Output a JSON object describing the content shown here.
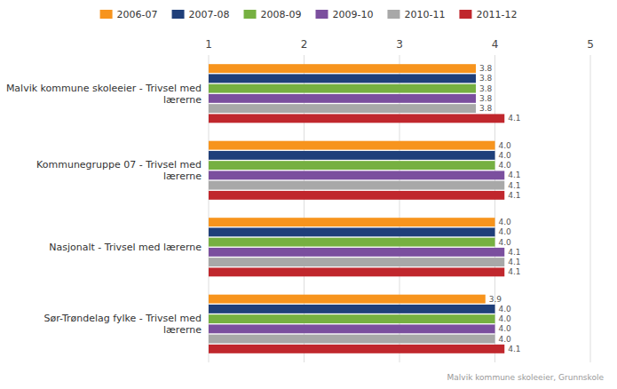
{
  "chart_data": {
    "type": "bar",
    "orientation": "horizontal",
    "categories": [
      "Malvik kommune skoleeier - Trivsel med\nlærerne",
      "Kommunegruppe 07 - Trivsel med\nlærerne",
      "Nasjonalt - Trivsel med lærerne",
      "Sør-Trøndelag fylke - Trivsel med\nlærerne"
    ],
    "series": [
      {
        "name": "2006-07",
        "color": "#F7941D",
        "values": [
          3.8,
          4.0,
          4.0,
          3.9
        ],
        "value_labels": [
          "3.8",
          "4.0",
          "4.0",
          "3.9"
        ]
      },
      {
        "name": "2007-08",
        "color": "#1F3F7A",
        "values": [
          3.8,
          4.0,
          4.0,
          4.0
        ],
        "value_labels": [
          "3.8",
          "4.0",
          "4.0",
          "4.0"
        ]
      },
      {
        "name": "2008-09",
        "color": "#76B041",
        "values": [
          3.8,
          4.0,
          4.0,
          4.0
        ],
        "value_labels": [
          "3.8",
          "4.0",
          "4.0",
          "4.0"
        ]
      },
      {
        "name": "2009-10",
        "color": "#7B4F9E",
        "values": [
          3.8,
          4.1,
          4.1,
          4.0
        ],
        "value_labels": [
          "3.8",
          "4.1",
          "4.1",
          "4.0"
        ]
      },
      {
        "name": "2010-11",
        "color": "#A8A8A8",
        "values": [
          3.8,
          4.1,
          4.1,
          4.0
        ],
        "value_labels": [
          "3.8",
          "4.1",
          "4.1",
          "4.0"
        ]
      },
      {
        "name": "2011-12",
        "color": "#C0272D",
        "values": [
          4.1,
          4.1,
          4.1,
          4.1
        ],
        "value_labels": [
          "4.1",
          "4.1",
          "4.1",
          "4.1"
        ]
      }
    ],
    "xlim": [
      1,
      5
    ],
    "xticks": [
      1,
      2,
      3,
      4,
      5
    ],
    "grid": true,
    "legend": "top",
    "data_labels": true,
    "annotations": [
      "Malvik kommune skoleeier, Grunnskole"
    ]
  }
}
